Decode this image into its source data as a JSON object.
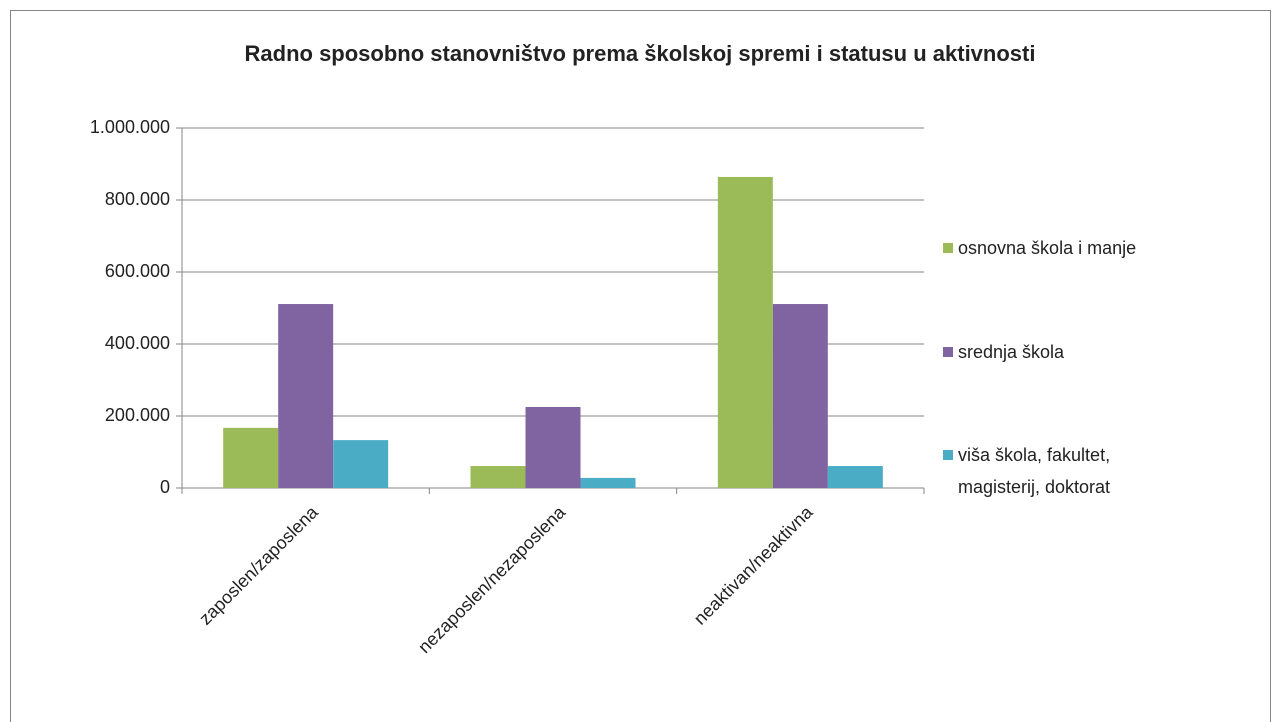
{
  "chart_data": {
    "type": "bar",
    "title": "Radno sposobno stanovništvo prema školskoj spremi i statusu u aktivnosti",
    "categories": [
      "zaposlen/zaposlena",
      "nezaposlen/nezaposlena",
      "neaktivan/neaktivna"
    ],
    "series": [
      {
        "name": "osnovna škola i manje",
        "color": "#9bbb59",
        "values": [
          167000,
          61000,
          864000
        ]
      },
      {
        "name": "srednja škola",
        "color": "#8064a2",
        "values": [
          511000,
          225000,
          511000
        ]
      },
      {
        "name": "viša škola, fakultet, magisterij, doktorat",
        "color": "#4bacc6",
        "values": [
          133000,
          28000,
          61000
        ]
      }
    ],
    "ylim": [
      0,
      1000000
    ],
    "yticks": [
      0,
      {
        "value": 200000,
        "label": "200.000"
      },
      {
        "value": 400000,
        "label": "400.000"
      },
      {
        "value": 600000,
        "label": "600.000"
      },
      {
        "value": 800000,
        "label": "800.000"
      },
      {
        "value": 1000000,
        "label": "1.000.000"
      }
    ],
    "grid": true,
    "legend": "right"
  }
}
